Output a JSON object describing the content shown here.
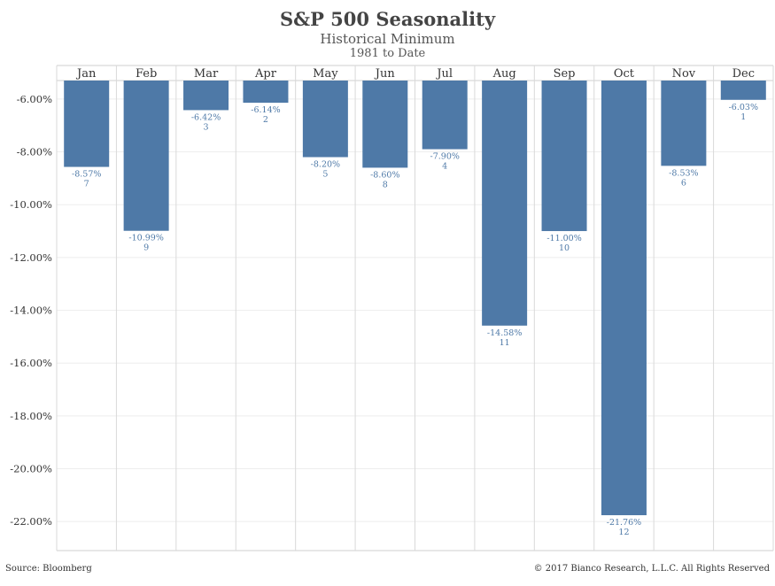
{
  "chart_data": {
    "type": "bar",
    "title": "S&P 500 Seasonality",
    "subtitle": "Historical Minimum",
    "subtitle2": "1981 to Date",
    "xlabel": "",
    "ylabel": "",
    "categories": [
      "Jan",
      "Feb",
      "Mar",
      "Apr",
      "May",
      "Jun",
      "Jul",
      "Aug",
      "Sep",
      "Oct",
      "Nov",
      "Dec"
    ],
    "values": [
      -8.57,
      -10.99,
      -6.42,
      -6.14,
      -8.2,
      -8.6,
      -7.9,
      -14.58,
      -11.0,
      -21.76,
      -8.53,
      -6.03
    ],
    "value_labels": [
      "-8.57%",
      "-10.99%",
      "-6.42%",
      "-6.14%",
      "-8.20%",
      "-8.60%",
      "-7.90%",
      "-14.58%",
      "-11.00%",
      "-21.76%",
      "-8.53%",
      "-6.03%"
    ],
    "ranks": [
      "7",
      "9",
      "3",
      "2",
      "5",
      "8",
      "4",
      "11",
      "10",
      "12",
      "6",
      "1"
    ],
    "y_ticks": [
      -6,
      -8,
      -10,
      -12,
      -14,
      -16,
      -18,
      -20,
      -22
    ],
    "y_tick_labels": [
      "-6.00%",
      "-8.00%",
      "-10.00%",
      "-12.00%",
      "-14.00%",
      "-16.00%",
      "-18.00%",
      "-20.00%",
      "-22.00%"
    ],
    "ylim": [
      -5.3,
      -23.1
    ],
    "bar_color": "#4e79a7",
    "grid": true,
    "legend": "none"
  },
  "footer": {
    "source": "Source: Bloomberg",
    "copyright": "© 2017 Bianco Research, L.L.C. All Rights Reserved"
  }
}
